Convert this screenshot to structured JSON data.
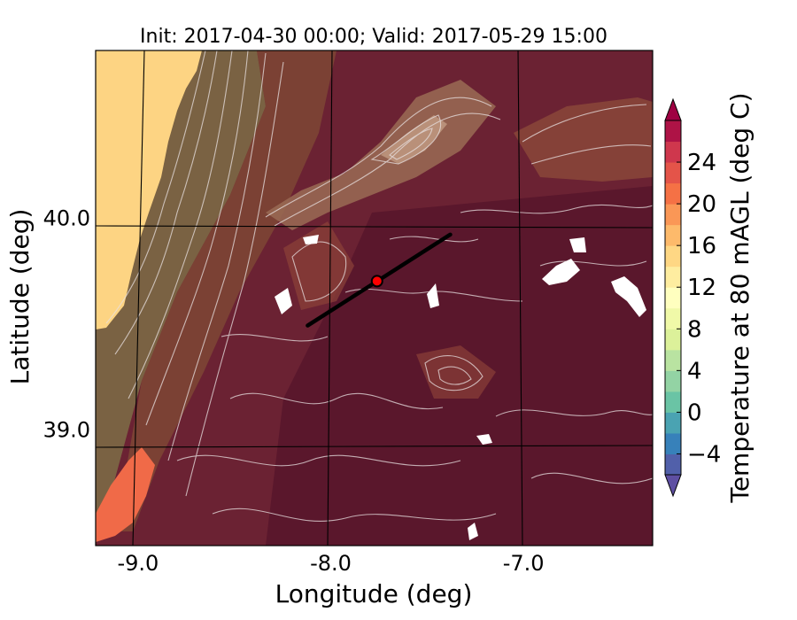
{
  "title": "Init: 2017-04-30 00:00; Valid: 2017-05-29 15:00",
  "map": {
    "xlabel": "Longitude (deg)",
    "ylabel": "Latitude (deg)",
    "x_ticks": [
      "-9.0",
      "-8.0",
      "-7.0"
    ],
    "y_ticks": [
      "40.0",
      "39.0"
    ],
    "x_tick_values": [
      -9.0,
      -8.0,
      -7.0
    ],
    "y_tick_values": [
      40.0,
      39.0
    ],
    "xlim": [
      -9.22,
      -6.33
    ],
    "ylim": [
      38.45,
      40.79
    ]
  },
  "transect": {
    "start": {
      "lon": -8.12,
      "lat": 39.49
    },
    "end": {
      "lon": -7.38,
      "lat": 39.92
    },
    "site": {
      "lon": -7.76,
      "lat": 39.7
    }
  },
  "colorbar": {
    "label": "Temperature at 80 mAGL (deg C)",
    "ticks": [
      "24",
      "20",
      "16",
      "12",
      "8",
      "4",
      "0",
      "−4"
    ],
    "tick_values": [
      24,
      20,
      16,
      12,
      8,
      4,
      0,
      -4
    ],
    "min": -6,
    "max": 28,
    "colors": [
      "#5e4fa2",
      "#3288bd",
      "#66c2a5",
      "#abdda4",
      "#e6f598",
      "#ffffbf",
      "#fee08b",
      "#fdae61",
      "#f46d43",
      "#d53e4f",
      "#9e0142"
    ]
  },
  "colors": {
    "ocean": "#fdd483",
    "land_warm": "#6b2233",
    "plain_hot": "#5e1a30",
    "highland": "#8a4a32",
    "coast_band": "#7d6a45",
    "hot_spot": "#f06a48",
    "contour": "#e8e0e0",
    "transect": "#000000",
    "site": "#ff0000"
  }
}
